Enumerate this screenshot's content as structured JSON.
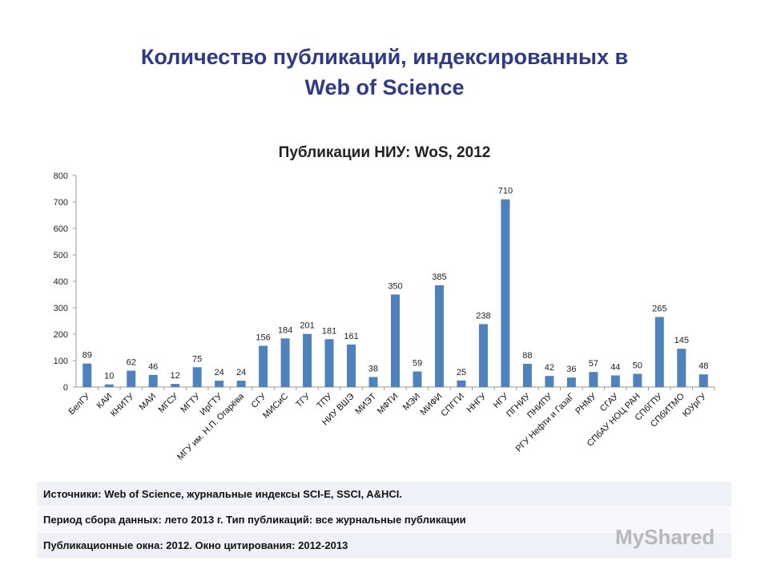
{
  "slide_title_line1": "Количество публикаций, индексированных в",
  "slide_title_line2": "Web of Science",
  "footer": [
    "Источники: Web of Science, журнальные индексы SCI-E, SSCI, A&HCI.",
    "Период сбора данных: лето 2013 г. Тип публикаций: все журнальные публикации",
    "Публикационные окна: 2012. Окно цитирования: 2012-2013"
  ],
  "watermark": "MyShared",
  "chart_data": {
    "type": "bar",
    "title": "Публикации НИУ: WoS, 2012",
    "categories": [
      "БелГУ",
      "КАИ",
      "КНИТУ",
      "МАИ",
      "МГСУ",
      "МГТУ",
      "ИрГТУ",
      "МГУ им. Н.П. Огарёва",
      "СГУ",
      "МИСиС",
      "ТГУ",
      "ТПУ",
      "НИУ ВШЭ",
      "МИЭТ",
      "МФТИ",
      "МЭИ",
      "МИФИ",
      "СПГГИ",
      "ННГУ",
      "НГУ",
      "ПГНИУ",
      "ПНИПУ",
      "РГУ Нефти и ГазаГ",
      "РНМУ",
      "СГАУ",
      "СПбАУ НОЦ РАН",
      "СПбГПУ",
      "СПбИТМО",
      "ЮУрГУ"
    ],
    "values": [
      89,
      10,
      62,
      46,
      12,
      75,
      24,
      24,
      156,
      184,
      201,
      181,
      161,
      38,
      350,
      59,
      385,
      25,
      238,
      710,
      88,
      42,
      36,
      57,
      44,
      50,
      265,
      145,
      48
    ],
    "yticks": [
      0,
      100,
      200,
      300,
      400,
      500,
      600,
      700,
      800
    ],
    "ylim": [
      0,
      800
    ],
    "grid": false,
    "bar_color": "#4f81bd",
    "title_color": "#2e3a87"
  }
}
